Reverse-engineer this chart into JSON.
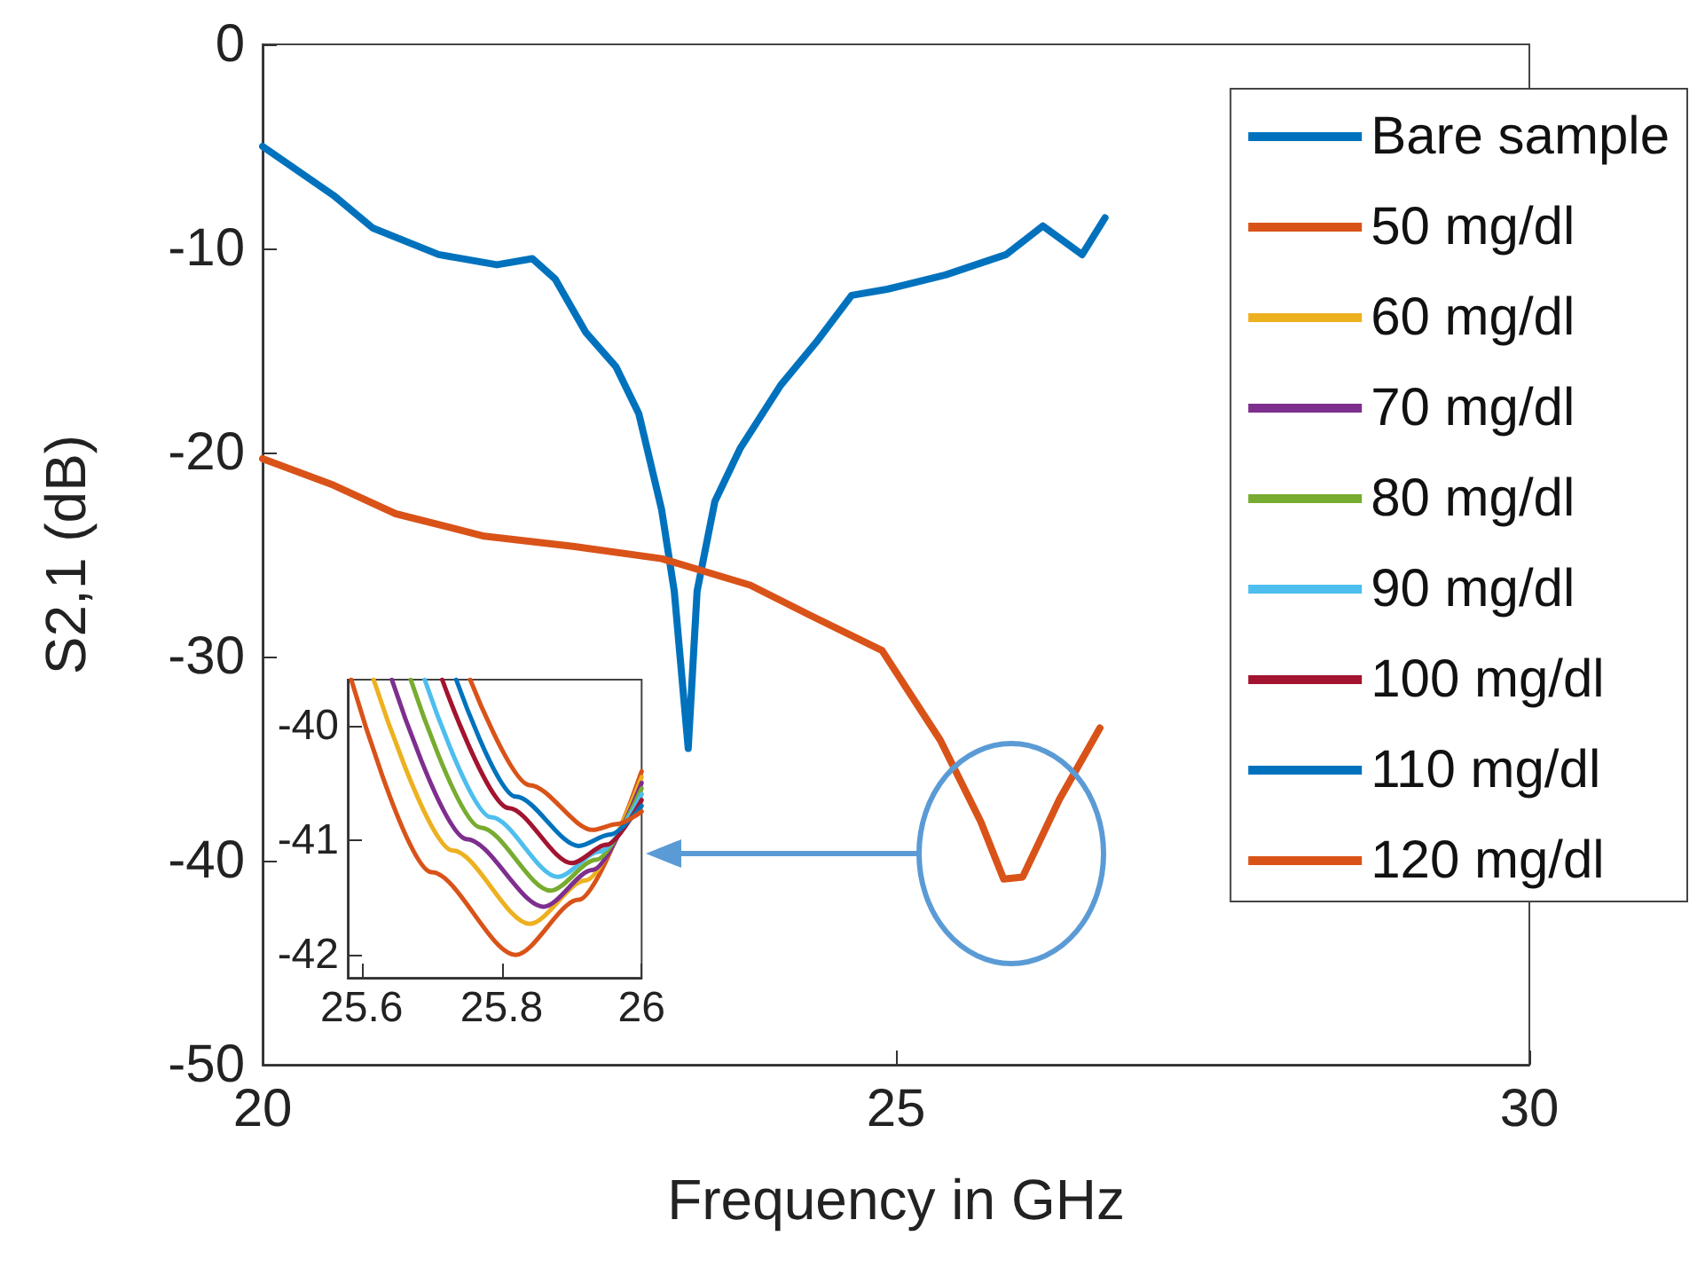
{
  "chart_data": [
    {
      "type": "line",
      "xlabel": "Frequency in GHz",
      "ylabel": "S2,1 (dB)",
      "xlim": [
        20,
        30
      ],
      "xticks": [
        20,
        25,
        30
      ],
      "ylim": [
        -50,
        0
      ],
      "yticks": [
        -50,
        -40,
        -30,
        -20,
        -10,
        0
      ],
      "grid": false,
      "legend": "top right",
      "marker": "none",
      "line_style": "solid",
      "series": [
        {
          "name": "Bare sample",
          "color": "#0072bd",
          "x": [
            20,
            20.56,
            20.87,
            21.39,
            21.85,
            22.13,
            22.31,
            22.55,
            22.79,
            22.97,
            23.15,
            23.25,
            23.36,
            23.43,
            23.57,
            23.77,
            24.09,
            24.37,
            24.65,
            24.93,
            25.39,
            25.87,
            26.16,
            26.47,
            26.65
          ],
          "values": [
            -5.0,
            -7.4,
            -9.0,
            -10.3,
            -10.8,
            -10.5,
            -11.5,
            -14.1,
            -15.8,
            -18.1,
            -22.8,
            -26.8,
            -34.5,
            -26.8,
            -22.4,
            -19.8,
            -16.7,
            -14.6,
            -12.3,
            -12.0,
            -11.3,
            -10.3,
            -8.9,
            -10.3,
            -8.5
          ]
        },
        {
          "name": "50 mg/dl",
          "color": "#d95319"
        },
        {
          "name": "60 mg/dl",
          "color": "#edb120"
        },
        {
          "name": "70 mg/dl",
          "color": "#7e2f8e"
        },
        {
          "name": "80 mg/dl",
          "color": "#77ac30"
        },
        {
          "name": "90 mg/dl",
          "color": "#4dbeee"
        },
        {
          "name": "100 mg/dl",
          "color": "#a2142f"
        },
        {
          "name": "110 mg/dl",
          "color": "#0072bd"
        },
        {
          "name": "120 mg/dl",
          "color": "#d95319",
          "x": [
            20,
            20.56,
            21.05,
            21.75,
            22.45,
            23.15,
            23.85,
            24.33,
            24.89,
            25.35,
            25.67,
            25.85,
            26.0,
            26.29,
            26.61
          ],
          "values": [
            -20.3,
            -21.6,
            -23.0,
            -24.1,
            -24.6,
            -25.2,
            -26.5,
            -28.0,
            -29.7,
            -34.1,
            -38.1,
            -40.9,
            -40.8,
            -37.0,
            -33.5
          ]
        }
      ]
    },
    {
      "type": "line",
      "xlim": [
        25.58,
        26
      ],
      "xticks": [
        25.6,
        25.8,
        26
      ],
      "ylim": [
        -42.2,
        -39.6
      ],
      "yticks": [
        -42,
        -41,
        -40
      ],
      "grid": false,
      "marker": "none",
      "line_style": "solid",
      "series": [
        {
          "color": "#d95319",
          "x": [
            25.585,
            25.7,
            25.82,
            25.91,
            26
          ],
          "values": [
            -39.6,
            -41.28,
            -42.0,
            -41.52,
            -40.4
          ]
        },
        {
          "color": "#edb120",
          "x": [
            25.617,
            25.73,
            25.84,
            25.92,
            26
          ],
          "values": [
            -39.6,
            -41.09,
            -41.73,
            -41.35,
            -40.45
          ]
        },
        {
          "color": "#7e2f8e",
          "x": [
            25.643,
            25.75,
            25.86,
            25.93,
            26
          ],
          "values": [
            -39.6,
            -40.99,
            -41.58,
            -41.26,
            -40.5
          ]
        },
        {
          "color": "#77ac30",
          "x": [
            25.67,
            25.77,
            25.87,
            25.935,
            26
          ],
          "values": [
            -39.6,
            -40.89,
            -41.44,
            -41.17,
            -40.55
          ]
        },
        {
          "color": "#4dbeee",
          "x": [
            25.69,
            25.785,
            25.88,
            25.94,
            26
          ],
          "values": [
            -39.6,
            -40.8,
            -41.32,
            -41.1,
            -40.6
          ]
        },
        {
          "color": "#a2142f",
          "x": [
            25.715,
            25.81,
            25.9,
            25.95,
            26
          ],
          "values": [
            -39.6,
            -40.72,
            -41.2,
            -41.04,
            -40.65
          ]
        },
        {
          "color": "#0072bd",
          "x": [
            25.735,
            25.82,
            25.91,
            25.955,
            26
          ],
          "values": [
            -39.6,
            -40.62,
            -41.05,
            -40.95,
            -40.7
          ]
        },
        {
          "color": "#d95319",
          "x": [
            25.755,
            25.84,
            25.93,
            25.965,
            26
          ],
          "values": [
            -39.6,
            -40.52,
            -40.91,
            -40.86,
            -40.75
          ]
        }
      ]
    }
  ]
}
